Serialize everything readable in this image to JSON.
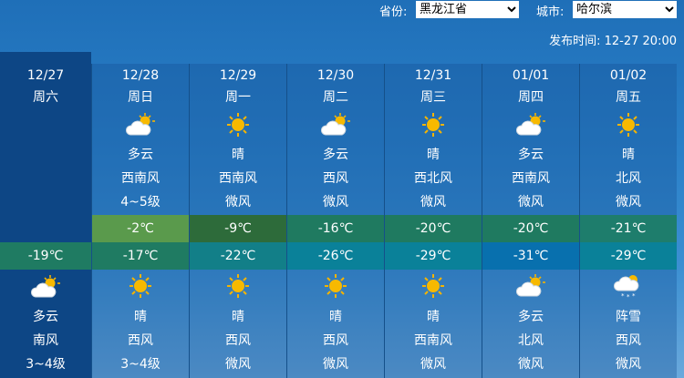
{
  "header": {
    "province_label": "省份:",
    "province_value": "黑龙江省",
    "city_label": "城市:",
    "city_value": "哈尔滨",
    "publish_label": "发布时间:",
    "publish_time": "12-27 20:00"
  },
  "today": {
    "date": "12/27",
    "weekday": "周六",
    "low": "-19℃",
    "low_color": "#1f7b62",
    "night_icon": "partly-cloudy-icon",
    "night_weather": "多云",
    "night_wind": "南风",
    "night_level": "3~4级"
  },
  "days": [
    {
      "date": "12/28",
      "weekday": "周日",
      "day_icon": "partly-cloudy-icon",
      "day_weather": "多云",
      "day_wind": "西南风",
      "day_level": "4~5级",
      "high": "-2℃",
      "high_color": "#5a9a4c",
      "low": "-17℃",
      "low_color": "#1f7b62",
      "night_icon": "sunny-icon",
      "night_weather": "晴",
      "night_wind": "西风",
      "night_level": "3~4级"
    },
    {
      "date": "12/29",
      "weekday": "周一",
      "day_icon": "sunny-icon",
      "day_weather": "晴",
      "day_wind": "西南风",
      "day_level": "微风",
      "high": "-9℃",
      "high_color": "#2d6b3a",
      "low": "-22℃",
      "low_color": "#127f88",
      "night_icon": "sunny-icon",
      "night_weather": "晴",
      "night_wind": "西风",
      "night_level": "微风"
    },
    {
      "date": "12/30",
      "weekday": "周二",
      "day_icon": "partly-cloudy-icon",
      "day_weather": "多云",
      "day_wind": "西风",
      "day_level": "微风",
      "high": "-16℃",
      "high_color": "#1f7a60",
      "low": "-26℃",
      "low_color": "#0a8199",
      "night_icon": "sunny-icon",
      "night_weather": "晴",
      "night_wind": "西风",
      "night_level": "微风"
    },
    {
      "date": "12/31",
      "weekday": "周三",
      "day_icon": "sunny-icon",
      "day_weather": "晴",
      "day_wind": "西北风",
      "day_level": "微风",
      "high": "-20℃",
      "high_color": "#1f7a60",
      "low": "-29℃",
      "low_color": "#0a8199",
      "night_icon": "sunny-icon",
      "night_weather": "晴",
      "night_wind": "西南风",
      "night_level": "微风"
    },
    {
      "date": "01/01",
      "weekday": "周四",
      "day_icon": "partly-cloudy-icon",
      "day_weather": "多云",
      "day_wind": "西南风",
      "day_level": "微风",
      "high": "-20℃",
      "high_color": "#1f7a60",
      "low": "-31℃",
      "low_color": "#0870ae",
      "night_icon": "partly-cloudy-icon",
      "night_weather": "多云",
      "night_wind": "北风",
      "night_level": "微风"
    },
    {
      "date": "01/02",
      "weekday": "周五",
      "day_icon": "sunny-icon",
      "day_weather": "晴",
      "day_wind": "北风",
      "day_level": "微风",
      "high": "-21℃",
      "high_color": "#1e7d6c",
      "low": "-29℃",
      "low_color": "#0a8199",
      "night_icon": "snow-shower-icon",
      "night_weather": "阵雪",
      "night_wind": "西风",
      "night_level": "微风"
    }
  ]
}
